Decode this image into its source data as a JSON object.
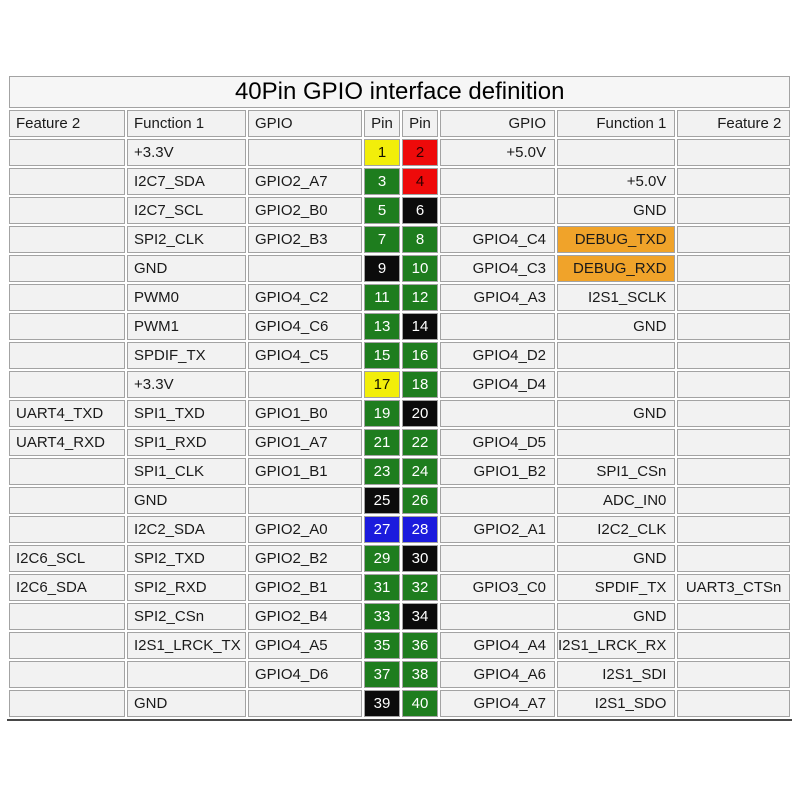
{
  "title": "40Pin GPIO interface definition",
  "colors": {
    "yellow": "#f2ee0a",
    "red": "#ee0a0a",
    "green": "#1e7d1e",
    "black": "#0b0b0b",
    "blue": "#1b1bdd",
    "orange": "#f0a32a",
    "cell_bg": "#f2f2f2",
    "border": "#a3a3a3"
  },
  "pin_text_colors": {
    "yellow": "#141400",
    "red": "#300000",
    "green": "#ffffff",
    "black": "#ffffff",
    "blue": "#ffffff"
  },
  "columns": [
    {
      "key": "l_feature2",
      "name": "feature2-left",
      "header": "Feature 2",
      "align": "al",
      "width": 116
    },
    {
      "key": "l_function1",
      "name": "function1-left",
      "header": "Function 1",
      "align": "al",
      "width": 119
    },
    {
      "key": "l_gpio",
      "name": "gpio-left",
      "header": "GPIO",
      "align": "al",
      "width": 114
    },
    {
      "key": "l_pin",
      "name": "pin-left",
      "header": "Pin",
      "align": "ac",
      "width": 36,
      "pin": true
    },
    {
      "key": "r_pin",
      "name": "pin-right",
      "header": "Pin",
      "align": "ac",
      "width": 36,
      "pin": true
    },
    {
      "key": "r_gpio",
      "name": "gpio-right",
      "header": "GPIO",
      "align": "ar",
      "width": 115
    },
    {
      "key": "r_function1",
      "name": "function1-right",
      "header": "Function 1",
      "align": "ar",
      "width": 115
    },
    {
      "key": "r_feature2",
      "name": "feature2-right",
      "header": "Feature 2",
      "align": "ar",
      "width": 113
    }
  ],
  "rows": [
    {
      "l_feature2": "",
      "l_function1": "+3.3V",
      "l_gpio": "",
      "l_pin": "1",
      "l_pin_color": "yellow",
      "r_pin": "2",
      "r_pin_color": "red",
      "r_gpio": "+5.0V",
      "r_function1": "",
      "r_feature2": ""
    },
    {
      "l_feature2": "",
      "l_function1": "I2C7_SDA",
      "l_gpio": "GPIO2_A7",
      "l_pin": "3",
      "l_pin_color": "green",
      "r_pin": "4",
      "r_pin_color": "red",
      "r_gpio": "",
      "r_function1": "+5.0V",
      "r_feature2": ""
    },
    {
      "l_feature2": "",
      "l_function1": "I2C7_SCL",
      "l_gpio": "GPIO2_B0",
      "l_pin": "5",
      "l_pin_color": "green",
      "r_pin": "6",
      "r_pin_color": "black",
      "r_gpio": "",
      "r_function1": "GND",
      "r_feature2": ""
    },
    {
      "l_feature2": "",
      "l_function1": "SPI2_CLK",
      "l_gpio": "GPIO2_B3",
      "l_pin": "7",
      "l_pin_color": "green",
      "r_pin": "8",
      "r_pin_color": "green",
      "r_gpio": "GPIO4_C4",
      "r_function1": "DEBUG_TXD",
      "r_function1_hl": "orange",
      "r_feature2": ""
    },
    {
      "l_feature2": "",
      "l_function1": "GND",
      "l_gpio": "",
      "l_pin": "9",
      "l_pin_color": "black",
      "r_pin": "10",
      "r_pin_color": "green",
      "r_gpio": "GPIO4_C3",
      "r_function1": "DEBUG_RXD",
      "r_function1_hl": "orange",
      "r_feature2": ""
    },
    {
      "l_feature2": "",
      "l_function1": "PWM0",
      "l_gpio": "GPIO4_C2",
      "l_pin": "11",
      "l_pin_color": "green",
      "r_pin": "12",
      "r_pin_color": "green",
      "r_gpio": "GPIO4_A3",
      "r_function1": "I2S1_SCLK",
      "r_feature2": ""
    },
    {
      "l_feature2": "",
      "l_function1": "PWM1",
      "l_gpio": "GPIO4_C6",
      "l_pin": "13",
      "l_pin_color": "green",
      "r_pin": "14",
      "r_pin_color": "black",
      "r_gpio": "",
      "r_function1": "GND",
      "r_feature2": ""
    },
    {
      "l_feature2": "",
      "l_function1": "SPDIF_TX",
      "l_gpio": "GPIO4_C5",
      "l_pin": "15",
      "l_pin_color": "green",
      "r_pin": "16",
      "r_pin_color": "green",
      "r_gpio": "GPIO4_D2",
      "r_function1": "",
      "r_feature2": ""
    },
    {
      "l_feature2": "",
      "l_function1": "+3.3V",
      "l_gpio": "",
      "l_pin": "17",
      "l_pin_color": "yellow",
      "r_pin": "18",
      "r_pin_color": "green",
      "r_gpio": "GPIO4_D4",
      "r_function1": "",
      "r_feature2": ""
    },
    {
      "l_feature2": "UART4_TXD",
      "l_function1": "SPI1_TXD",
      "l_gpio": "GPIO1_B0",
      "l_pin": "19",
      "l_pin_color": "green",
      "r_pin": "20",
      "r_pin_color": "black",
      "r_gpio": "",
      "r_function1": "GND",
      "r_feature2": ""
    },
    {
      "l_feature2": "UART4_RXD",
      "l_function1": "SPI1_RXD",
      "l_gpio": "GPIO1_A7",
      "l_pin": "21",
      "l_pin_color": "green",
      "r_pin": "22",
      "r_pin_color": "green",
      "r_gpio": "GPIO4_D5",
      "r_function1": "",
      "r_feature2": ""
    },
    {
      "l_feature2": "",
      "l_function1": "SPI1_CLK",
      "l_gpio": "GPIO1_B1",
      "l_pin": "23",
      "l_pin_color": "green",
      "r_pin": "24",
      "r_pin_color": "green",
      "r_gpio": "GPIO1_B2",
      "r_function1": "SPI1_CSn",
      "r_feature2": ""
    },
    {
      "l_feature2": "",
      "l_function1": "GND",
      "l_gpio": "",
      "l_pin": "25",
      "l_pin_color": "black",
      "r_pin": "26",
      "r_pin_color": "green",
      "r_gpio": "",
      "r_function1": "ADC_IN0",
      "r_feature2": ""
    },
    {
      "l_feature2": "",
      "l_function1": "I2C2_SDA",
      "l_gpio": "GPIO2_A0",
      "l_pin": "27",
      "l_pin_color": "blue",
      "r_pin": "28",
      "r_pin_color": "blue",
      "r_gpio": "GPIO2_A1",
      "r_function1": "I2C2_CLK",
      "r_feature2": ""
    },
    {
      "l_feature2": "I2C6_SCL",
      "l_function1": "SPI2_TXD",
      "l_gpio": "GPIO2_B2",
      "l_pin": "29",
      "l_pin_color": "green",
      "r_pin": "30",
      "r_pin_color": "black",
      "r_gpio": "",
      "r_function1": "GND",
      "r_feature2": ""
    },
    {
      "l_feature2": "I2C6_SDA",
      "l_function1": "SPI2_RXD",
      "l_gpio": "GPIO2_B1",
      "l_pin": "31",
      "l_pin_color": "green",
      "r_pin": "32",
      "r_pin_color": "green",
      "r_gpio": "GPIO3_C0",
      "r_function1": "SPDIF_TX",
      "r_feature2": "UART3_CTSn"
    },
    {
      "l_feature2": "",
      "l_function1": "SPI2_CSn",
      "l_gpio": "GPIO2_B4",
      "l_pin": "33",
      "l_pin_color": "green",
      "r_pin": "34",
      "r_pin_color": "black",
      "r_gpio": "",
      "r_function1": "GND",
      "r_feature2": ""
    },
    {
      "l_feature2": "",
      "l_function1": "I2S1_LRCK_TX",
      "l_gpio": "GPIO4_A5",
      "l_pin": "35",
      "l_pin_color": "green",
      "r_pin": "36",
      "r_pin_color": "green",
      "r_gpio": "GPIO4_A4",
      "r_function1": "I2S1_LRCK_RX",
      "r_feature2": ""
    },
    {
      "l_feature2": "",
      "l_function1": "",
      "l_gpio": "GPIO4_D6",
      "l_pin": "37",
      "l_pin_color": "green",
      "r_pin": "38",
      "r_pin_color": "green",
      "r_gpio": "GPIO4_A6",
      "r_function1": "I2S1_SDI",
      "r_feature2": ""
    },
    {
      "l_feature2": "",
      "l_function1": "GND",
      "l_gpio": "",
      "l_pin": "39",
      "l_pin_color": "black",
      "r_pin": "40",
      "r_pin_color": "green",
      "r_gpio": "GPIO4_A7",
      "r_function1": "I2S1_SDO",
      "r_feature2": ""
    }
  ]
}
